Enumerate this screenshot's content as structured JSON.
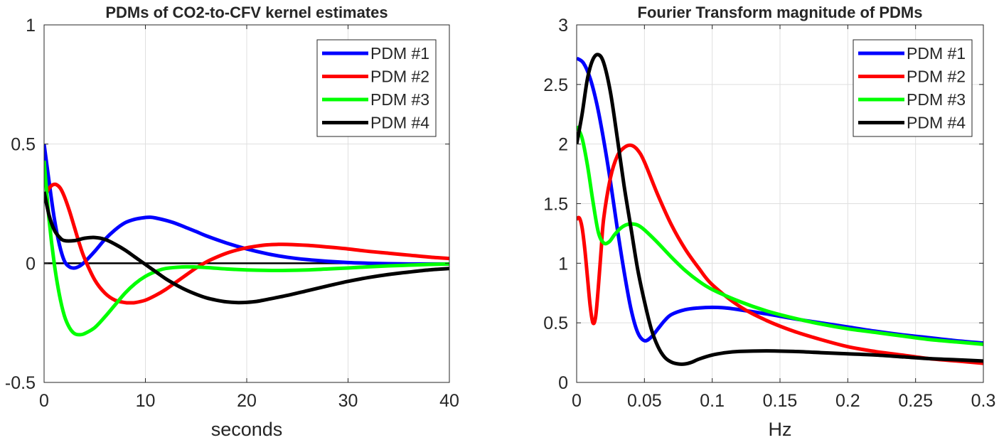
{
  "chart_data": [
    {
      "type": "line",
      "title": "PDMs of CO2-to-CFV kernel estimates",
      "xlabel": "seconds",
      "ylabel": "",
      "xlim": [
        0,
        40
      ],
      "ylim": [
        -0.5,
        1
      ],
      "xticks": [
        0,
        10,
        20,
        30,
        40
      ],
      "xtick_labels": [
        "0",
        "10",
        "20",
        "30",
        "40"
      ],
      "yticks": [
        -0.5,
        0,
        0.5,
        1
      ],
      "ytick_labels": [
        "-0.5",
        "0",
        "0.5",
        "1"
      ],
      "grid": true,
      "legend_position": "top-right",
      "zero_line": true,
      "series": [
        {
          "name": "PDM #1",
          "color": "#0000ff",
          "x": [
            0,
            0.5,
            1,
            1.5,
            2,
            2.5,
            3,
            3.5,
            4,
            5,
            6,
            7,
            8,
            9,
            10,
            10.5,
            11,
            12,
            13,
            14,
            15,
            16,
            18,
            20,
            22,
            24,
            26,
            28,
            30,
            32,
            34,
            36,
            38,
            40
          ],
          "y": [
            0.5,
            0.34,
            0.19,
            0.08,
            0.01,
            -0.015,
            -0.02,
            -0.012,
            0.005,
            0.05,
            0.1,
            0.14,
            0.17,
            0.185,
            0.192,
            0.193,
            0.19,
            0.18,
            0.167,
            0.15,
            0.133,
            0.115,
            0.085,
            0.06,
            0.04,
            0.025,
            0.015,
            0.008,
            0.003,
            0.0,
            -0.002,
            -0.003,
            -0.003,
            -0.003
          ]
        },
        {
          "name": "PDM #2",
          "color": "#ff0000",
          "x": [
            0,
            0.3,
            0.6,
            0.9,
            1.2,
            1.6,
            2,
            2.5,
            3,
            3.5,
            4,
            5,
            6,
            7,
            8,
            8.5,
            9,
            10,
            11,
            12,
            13,
            14,
            15,
            16,
            17,
            18,
            19,
            20,
            21,
            22,
            23,
            24,
            26,
            28,
            30,
            32,
            34,
            36,
            38,
            40
          ],
          "y": [
            0.26,
            0.3,
            0.32,
            0.33,
            0.33,
            0.315,
            0.28,
            0.22,
            0.15,
            0.08,
            0.02,
            -0.07,
            -0.125,
            -0.155,
            -0.165,
            -0.166,
            -0.165,
            -0.155,
            -0.135,
            -0.11,
            -0.08,
            -0.05,
            -0.02,
            0.005,
            0.025,
            0.042,
            0.055,
            0.065,
            0.072,
            0.077,
            0.079,
            0.079,
            0.075,
            0.068,
            0.06,
            0.05,
            0.042,
            0.034,
            0.026,
            0.02
          ]
        },
        {
          "name": "PDM #3",
          "color": "#00ff00",
          "x": [
            0,
            0.5,
            1,
            1.5,
            2,
            2.5,
            3,
            3.5,
            4,
            5,
            6,
            7,
            8,
            9,
            10,
            11,
            12,
            14,
            16,
            18,
            20,
            22,
            24,
            26,
            28,
            30,
            32,
            34,
            36,
            38,
            40
          ],
          "y": [
            0.43,
            0.18,
            0.0,
            -0.13,
            -0.22,
            -0.27,
            -0.295,
            -0.3,
            -0.295,
            -0.27,
            -0.225,
            -0.175,
            -0.125,
            -0.085,
            -0.055,
            -0.035,
            -0.022,
            -0.015,
            -0.018,
            -0.024,
            -0.028,
            -0.03,
            -0.03,
            -0.028,
            -0.024,
            -0.02,
            -0.015,
            -0.011,
            -0.008,
            -0.005,
            -0.003
          ]
        },
        {
          "name": "PDM #4",
          "color": "#000000",
          "x": [
            0,
            0.5,
            1,
            1.5,
            2,
            3,
            4,
            5,
            6,
            7,
            8,
            9,
            10,
            11,
            12,
            13,
            14,
            15,
            16,
            17,
            18,
            19,
            20,
            21,
            22,
            24,
            26,
            28,
            30,
            32,
            34,
            36,
            38,
            40
          ],
          "y": [
            0.3,
            0.2,
            0.14,
            0.11,
            0.095,
            0.095,
            0.105,
            0.108,
            0.1,
            0.08,
            0.055,
            0.025,
            -0.005,
            -0.035,
            -0.065,
            -0.09,
            -0.112,
            -0.13,
            -0.145,
            -0.155,
            -0.162,
            -0.165,
            -0.164,
            -0.16,
            -0.152,
            -0.135,
            -0.115,
            -0.095,
            -0.076,
            -0.06,
            -0.047,
            -0.037,
            -0.028,
            -0.022
          ]
        }
      ]
    },
    {
      "type": "line",
      "title": "Fourier Transform magnitude of PDMs",
      "xlabel": "Hz",
      "ylabel": "",
      "xlim": [
        0,
        0.3
      ],
      "ylim": [
        0,
        3
      ],
      "xticks": [
        0,
        0.05,
        0.1,
        0.15,
        0.2,
        0.25,
        0.3
      ],
      "xtick_labels": [
        "0",
        "0.05",
        "0.1",
        "0.15",
        "0.2",
        "0.25",
        "0.3"
      ],
      "yticks": [
        0,
        0.5,
        1,
        1.5,
        2,
        2.5,
        3
      ],
      "ytick_labels": [
        "0",
        "0.5",
        "1",
        "1.5",
        "2",
        "2.5",
        "3"
      ],
      "grid": true,
      "legend_position": "top-right",
      "zero_line": false,
      "series": [
        {
          "name": "PDM #1",
          "color": "#0000ff",
          "x": [
            0,
            0.005,
            0.01,
            0.015,
            0.02,
            0.025,
            0.03,
            0.035,
            0.04,
            0.045,
            0.05,
            0.055,
            0.06,
            0.065,
            0.07,
            0.08,
            0.09,
            0.1,
            0.11,
            0.12,
            0.14,
            0.16,
            0.18,
            0.2,
            0.22,
            0.24,
            0.26,
            0.28,
            0.3
          ],
          "y": [
            2.72,
            2.68,
            2.55,
            2.33,
            2.03,
            1.68,
            1.29,
            0.93,
            0.62,
            0.42,
            0.35,
            0.38,
            0.45,
            0.52,
            0.57,
            0.61,
            0.625,
            0.63,
            0.625,
            0.61,
            0.575,
            0.535,
            0.5,
            0.465,
            0.43,
            0.4,
            0.375,
            0.35,
            0.33
          ]
        },
        {
          "name": "PDM #2",
          "color": "#ff0000",
          "x": [
            0,
            0.002,
            0.004,
            0.006,
            0.008,
            0.01,
            0.012,
            0.014,
            0.016,
            0.018,
            0.02,
            0.025,
            0.03,
            0.035,
            0.04,
            0.045,
            0.05,
            0.06,
            0.07,
            0.08,
            0.09,
            0.1,
            0.12,
            0.14,
            0.16,
            0.18,
            0.2,
            0.22,
            0.24,
            0.26,
            0.28,
            0.3
          ],
          "y": [
            1.37,
            1.38,
            1.3,
            1.12,
            0.88,
            0.64,
            0.5,
            0.55,
            0.8,
            1.1,
            1.38,
            1.72,
            1.9,
            1.97,
            1.99,
            1.95,
            1.85,
            1.57,
            1.32,
            1.12,
            0.96,
            0.82,
            0.64,
            0.52,
            0.43,
            0.36,
            0.3,
            0.26,
            0.23,
            0.2,
            0.18,
            0.16
          ]
        },
        {
          "name": "PDM #3",
          "color": "#00ff00",
          "x": [
            0,
            0.004,
            0.008,
            0.012,
            0.016,
            0.02,
            0.024,
            0.028,
            0.032,
            0.036,
            0.04,
            0.045,
            0.05,
            0.06,
            0.07,
            0.08,
            0.09,
            0.1,
            0.12,
            0.14,
            0.16,
            0.18,
            0.2,
            0.22,
            0.24,
            0.26,
            0.28,
            0.3
          ],
          "y": [
            2.15,
            2.05,
            1.82,
            1.52,
            1.26,
            1.17,
            1.18,
            1.24,
            1.29,
            1.32,
            1.33,
            1.32,
            1.28,
            1.17,
            1.05,
            0.94,
            0.85,
            0.78,
            0.68,
            0.6,
            0.54,
            0.49,
            0.45,
            0.42,
            0.39,
            0.36,
            0.34,
            0.32
          ]
        },
        {
          "name": "PDM #4",
          "color": "#000000",
          "x": [
            0,
            0.004,
            0.008,
            0.012,
            0.016,
            0.02,
            0.025,
            0.03,
            0.035,
            0.04,
            0.045,
            0.05,
            0.055,
            0.06,
            0.065,
            0.07,
            0.075,
            0.08,
            0.085,
            0.09,
            0.1,
            0.11,
            0.12,
            0.14,
            0.16,
            0.18,
            0.2,
            0.22,
            0.24,
            0.26,
            0.28,
            0.3
          ],
          "y": [
            2.0,
            2.25,
            2.55,
            2.71,
            2.75,
            2.68,
            2.43,
            2.05,
            1.65,
            1.3,
            0.95,
            0.68,
            0.45,
            0.3,
            0.21,
            0.17,
            0.155,
            0.155,
            0.17,
            0.195,
            0.23,
            0.25,
            0.26,
            0.265,
            0.26,
            0.25,
            0.24,
            0.23,
            0.215,
            0.2,
            0.19,
            0.18
          ]
        }
      ]
    }
  ]
}
